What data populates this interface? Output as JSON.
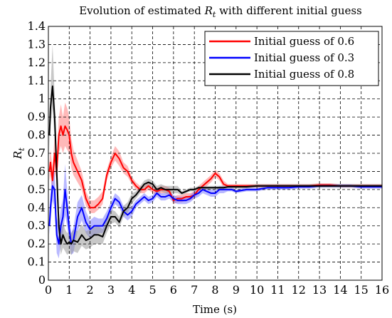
{
  "chart_data": {
    "type": "line",
    "title_prefix": "Evolution of estimated ",
    "title_symbol": "R",
    "title_subscript": "t",
    "title_suffix": " with different initial guess",
    "xlabel": "Time (s)",
    "ylabel_symbol": "R",
    "ylabel_subscript": "t",
    "xlim": [
      0,
      16
    ],
    "ylim": [
      0,
      1.4
    ],
    "xticks": [
      "0",
      "1",
      "2",
      "3",
      "4",
      "5",
      "6",
      "7",
      "8",
      "9",
      "10",
      "11",
      "12",
      "13",
      "14",
      "15",
      "16"
    ],
    "yticks": [
      "0",
      "0.1",
      "0.2",
      "0.3",
      "0.4",
      "0.5",
      "0.6",
      "0.7",
      "0.8",
      "0.9",
      "1",
      "1.1",
      "1.2",
      "1.3",
      "1.4"
    ],
    "grid": true,
    "grid_style": "dashed",
    "legend_position": "top-right",
    "series": [
      {
        "name": "Initial guess of 0.6",
        "color": "#ff0000",
        "band_color": "#ff8080",
        "x": [
          0.05,
          0.1,
          0.2,
          0.3,
          0.4,
          0.5,
          0.6,
          0.7,
          0.8,
          0.9,
          1.0,
          1.1,
          1.2,
          1.4,
          1.6,
          1.8,
          2.0,
          2.2,
          2.4,
          2.6,
          2.8,
          3.0,
          3.2,
          3.4,
          3.6,
          3.8,
          4.0,
          4.2,
          4.4,
          4.6,
          4.8,
          5.0,
          5.2,
          5.4,
          5.6,
          5.8,
          6.0,
          6.2,
          6.4,
          6.6,
          6.8,
          7.0,
          7.2,
          7.4,
          7.6,
          7.8,
          8.0,
          8.2,
          8.4,
          8.6,
          8.8,
          9.0,
          9.5,
          10,
          10.5,
          11,
          11.5,
          12,
          12.5,
          13,
          13.5,
          14,
          14.5,
          15,
          15.5,
          16
        ],
        "y": [
          0.6,
          0.65,
          0.55,
          0.7,
          0.6,
          0.8,
          0.85,
          0.8,
          0.85,
          0.83,
          0.8,
          0.7,
          0.65,
          0.6,
          0.55,
          0.45,
          0.4,
          0.4,
          0.42,
          0.45,
          0.58,
          0.65,
          0.7,
          0.67,
          0.62,
          0.6,
          0.55,
          0.52,
          0.5,
          0.5,
          0.52,
          0.5,
          0.49,
          0.5,
          0.5,
          0.49,
          0.44,
          0.45,
          0.45,
          0.46,
          0.46,
          0.47,
          0.5,
          0.52,
          0.54,
          0.56,
          0.59,
          0.57,
          0.53,
          0.52,
          0.52,
          0.52,
          0.52,
          0.52,
          0.52,
          0.52,
          0.52,
          0.52,
          0.52,
          0.525,
          0.525,
          0.52,
          0.52,
          0.52,
          0.52,
          0.52
        ],
        "lower": [
          0.55,
          0.58,
          0.48,
          0.6,
          0.55,
          0.7,
          0.74,
          0.7,
          0.74,
          0.72,
          0.7,
          0.62,
          0.58,
          0.54,
          0.5,
          0.41,
          0.37,
          0.37,
          0.39,
          0.42,
          0.55,
          0.62,
          0.66,
          0.63,
          0.59,
          0.57,
          0.53,
          0.5,
          0.48,
          0.48,
          0.5,
          0.48,
          0.47,
          0.48,
          0.48,
          0.47,
          0.42,
          0.43,
          0.43,
          0.44,
          0.44,
          0.45,
          0.48,
          0.5,
          0.52,
          0.54,
          0.57,
          0.55,
          0.51,
          0.51,
          0.51,
          0.51,
          0.51,
          0.51,
          0.51,
          0.51,
          0.51,
          0.51,
          0.51,
          0.515,
          0.515,
          0.51,
          0.51,
          0.51,
          0.51,
          0.51
        ],
        "upper": [
          0.65,
          0.72,
          0.62,
          0.8,
          0.66,
          0.9,
          0.97,
          0.9,
          0.98,
          0.95,
          0.9,
          0.78,
          0.72,
          0.66,
          0.6,
          0.49,
          0.44,
          0.44,
          0.46,
          0.49,
          0.61,
          0.68,
          0.74,
          0.71,
          0.65,
          0.63,
          0.57,
          0.54,
          0.52,
          0.52,
          0.54,
          0.52,
          0.51,
          0.52,
          0.52,
          0.51,
          0.46,
          0.47,
          0.47,
          0.48,
          0.48,
          0.49,
          0.52,
          0.54,
          0.56,
          0.58,
          0.61,
          0.59,
          0.55,
          0.53,
          0.53,
          0.53,
          0.53,
          0.53,
          0.53,
          0.53,
          0.53,
          0.53,
          0.53,
          0.535,
          0.535,
          0.53,
          0.53,
          0.53,
          0.53,
          0.53
        ]
      },
      {
        "name": "Initial guess of 0.3",
        "color": "#0000ff",
        "band_color": "#8080ff",
        "x": [
          0.05,
          0.1,
          0.2,
          0.3,
          0.4,
          0.5,
          0.6,
          0.7,
          0.8,
          0.9,
          1.0,
          1.1,
          1.2,
          1.4,
          1.6,
          1.8,
          2.0,
          2.2,
          2.4,
          2.6,
          2.8,
          3.0,
          3.2,
          3.4,
          3.6,
          3.8,
          4.0,
          4.2,
          4.4,
          4.6,
          4.8,
          5.0,
          5.2,
          5.4,
          5.6,
          5.8,
          6.0,
          6.2,
          6.4,
          6.6,
          6.8,
          7.0,
          7.2,
          7.4,
          7.6,
          7.8,
          8.0,
          8.2,
          8.4,
          8.6,
          8.8,
          9.0,
          9.5,
          10,
          10.5,
          11,
          11.5,
          12,
          12.5,
          13,
          13.5,
          14,
          14.5,
          15,
          15.5,
          16
        ],
        "y": [
          0.3,
          0.4,
          0.52,
          0.5,
          0.25,
          0.2,
          0.3,
          0.35,
          0.5,
          0.4,
          0.28,
          0.2,
          0.22,
          0.35,
          0.4,
          0.32,
          0.28,
          0.3,
          0.3,
          0.3,
          0.34,
          0.4,
          0.45,
          0.43,
          0.38,
          0.36,
          0.38,
          0.42,
          0.44,
          0.46,
          0.44,
          0.45,
          0.48,
          0.46,
          0.46,
          0.47,
          0.45,
          0.44,
          0.44,
          0.44,
          0.45,
          0.47,
          0.48,
          0.5,
          0.49,
          0.48,
          0.48,
          0.5,
          0.5,
          0.5,
          0.5,
          0.49,
          0.5,
          0.5,
          0.51,
          0.51,
          0.51,
          0.515,
          0.515,
          0.52,
          0.52,
          0.52,
          0.52,
          0.515,
          0.515,
          0.515
        ],
        "lower": [
          0.25,
          0.32,
          0.44,
          0.4,
          0.15,
          0.12,
          0.2,
          0.25,
          0.36,
          0.3,
          0.2,
          0.14,
          0.15,
          0.27,
          0.33,
          0.26,
          0.23,
          0.25,
          0.26,
          0.26,
          0.3,
          0.37,
          0.42,
          0.4,
          0.35,
          0.33,
          0.35,
          0.4,
          0.42,
          0.44,
          0.42,
          0.43,
          0.46,
          0.44,
          0.44,
          0.45,
          0.43,
          0.42,
          0.42,
          0.42,
          0.43,
          0.45,
          0.46,
          0.48,
          0.47,
          0.46,
          0.46,
          0.48,
          0.48,
          0.49,
          0.49,
          0.48,
          0.49,
          0.49,
          0.5,
          0.5,
          0.5,
          0.505,
          0.505,
          0.51,
          0.51,
          0.51,
          0.51,
          0.505,
          0.505,
          0.505
        ],
        "upper": [
          0.35,
          0.48,
          0.6,
          0.6,
          0.35,
          0.3,
          0.4,
          0.45,
          0.64,
          0.5,
          0.36,
          0.26,
          0.29,
          0.43,
          0.47,
          0.38,
          0.33,
          0.35,
          0.34,
          0.34,
          0.38,
          0.43,
          0.48,
          0.46,
          0.41,
          0.39,
          0.41,
          0.44,
          0.46,
          0.48,
          0.46,
          0.47,
          0.5,
          0.48,
          0.48,
          0.49,
          0.47,
          0.46,
          0.46,
          0.46,
          0.47,
          0.49,
          0.5,
          0.52,
          0.51,
          0.5,
          0.5,
          0.52,
          0.52,
          0.51,
          0.51,
          0.5,
          0.51,
          0.51,
          0.52,
          0.52,
          0.52,
          0.525,
          0.525,
          0.53,
          0.53,
          0.53,
          0.53,
          0.525,
          0.525,
          0.525
        ]
      },
      {
        "name": "Initial guess of 0.8",
        "color": "#000000",
        "band_color": "#9a9a9a",
        "x": [
          0.05,
          0.1,
          0.2,
          0.3,
          0.4,
          0.5,
          0.6,
          0.7,
          0.8,
          0.9,
          1.0,
          1.1,
          1.2,
          1.4,
          1.6,
          1.8,
          2.0,
          2.2,
          2.4,
          2.6,
          2.8,
          3.0,
          3.2,
          3.4,
          3.6,
          3.8,
          4.0,
          4.2,
          4.4,
          4.6,
          4.8,
          5.0,
          5.2,
          5.4,
          5.6,
          5.8,
          6.0,
          6.2,
          6.4,
          6.6,
          6.8,
          7.0,
          7.2,
          7.4,
          7.6,
          7.8,
          8.0,
          8.2,
          8.4,
          8.6,
          8.8,
          9.0,
          9.5,
          10,
          10.5,
          11,
          11.5,
          12,
          12.5,
          13,
          13.5,
          14,
          14.5,
          15,
          15.5,
          16
        ],
        "y": [
          0.8,
          0.95,
          1.07,
          0.9,
          0.6,
          0.3,
          0.2,
          0.25,
          0.22,
          0.2,
          0.21,
          0.2,
          0.22,
          0.21,
          0.25,
          0.22,
          0.23,
          0.25,
          0.25,
          0.24,
          0.3,
          0.35,
          0.35,
          0.32,
          0.38,
          0.4,
          0.45,
          0.47,
          0.5,
          0.53,
          0.54,
          0.53,
          0.5,
          0.51,
          0.5,
          0.5,
          0.5,
          0.5,
          0.48,
          0.49,
          0.5,
          0.5,
          0.51,
          0.51,
          0.51,
          0.51,
          0.51,
          0.51,
          0.51,
          0.515,
          0.515,
          0.515,
          0.515,
          0.52,
          0.52,
          0.52,
          0.52,
          0.52,
          0.52,
          0.52,
          0.52,
          0.52,
          0.52,
          0.52,
          0.52,
          0.52
        ],
        "lower": [
          0.72,
          0.85,
          0.95,
          0.78,
          0.48,
          0.22,
          0.14,
          0.18,
          0.16,
          0.14,
          0.15,
          0.14,
          0.16,
          0.15,
          0.19,
          0.17,
          0.18,
          0.2,
          0.2,
          0.2,
          0.26,
          0.31,
          0.32,
          0.29,
          0.35,
          0.37,
          0.42,
          0.45,
          0.48,
          0.51,
          0.52,
          0.51,
          0.48,
          0.49,
          0.48,
          0.48,
          0.48,
          0.48,
          0.47,
          0.48,
          0.49,
          0.49,
          0.5,
          0.5,
          0.5,
          0.5,
          0.5,
          0.5,
          0.5,
          0.505,
          0.505,
          0.505,
          0.505,
          0.51,
          0.51,
          0.51,
          0.51,
          0.51,
          0.51,
          0.51,
          0.51,
          0.51,
          0.51,
          0.51,
          0.51,
          0.51
        ],
        "upper": [
          0.88,
          1.05,
          1.3,
          1.02,
          0.72,
          0.38,
          0.26,
          0.32,
          0.28,
          0.26,
          0.27,
          0.26,
          0.28,
          0.27,
          0.31,
          0.27,
          0.28,
          0.3,
          0.3,
          0.28,
          0.34,
          0.39,
          0.38,
          0.35,
          0.41,
          0.43,
          0.48,
          0.49,
          0.52,
          0.55,
          0.56,
          0.55,
          0.52,
          0.53,
          0.52,
          0.52,
          0.52,
          0.52,
          0.49,
          0.5,
          0.51,
          0.51,
          0.52,
          0.52,
          0.52,
          0.52,
          0.52,
          0.52,
          0.52,
          0.525,
          0.525,
          0.525,
          0.525,
          0.53,
          0.53,
          0.53,
          0.53,
          0.53,
          0.53,
          0.53,
          0.53,
          0.53,
          0.53,
          0.53,
          0.53,
          0.53
        ]
      }
    ]
  }
}
